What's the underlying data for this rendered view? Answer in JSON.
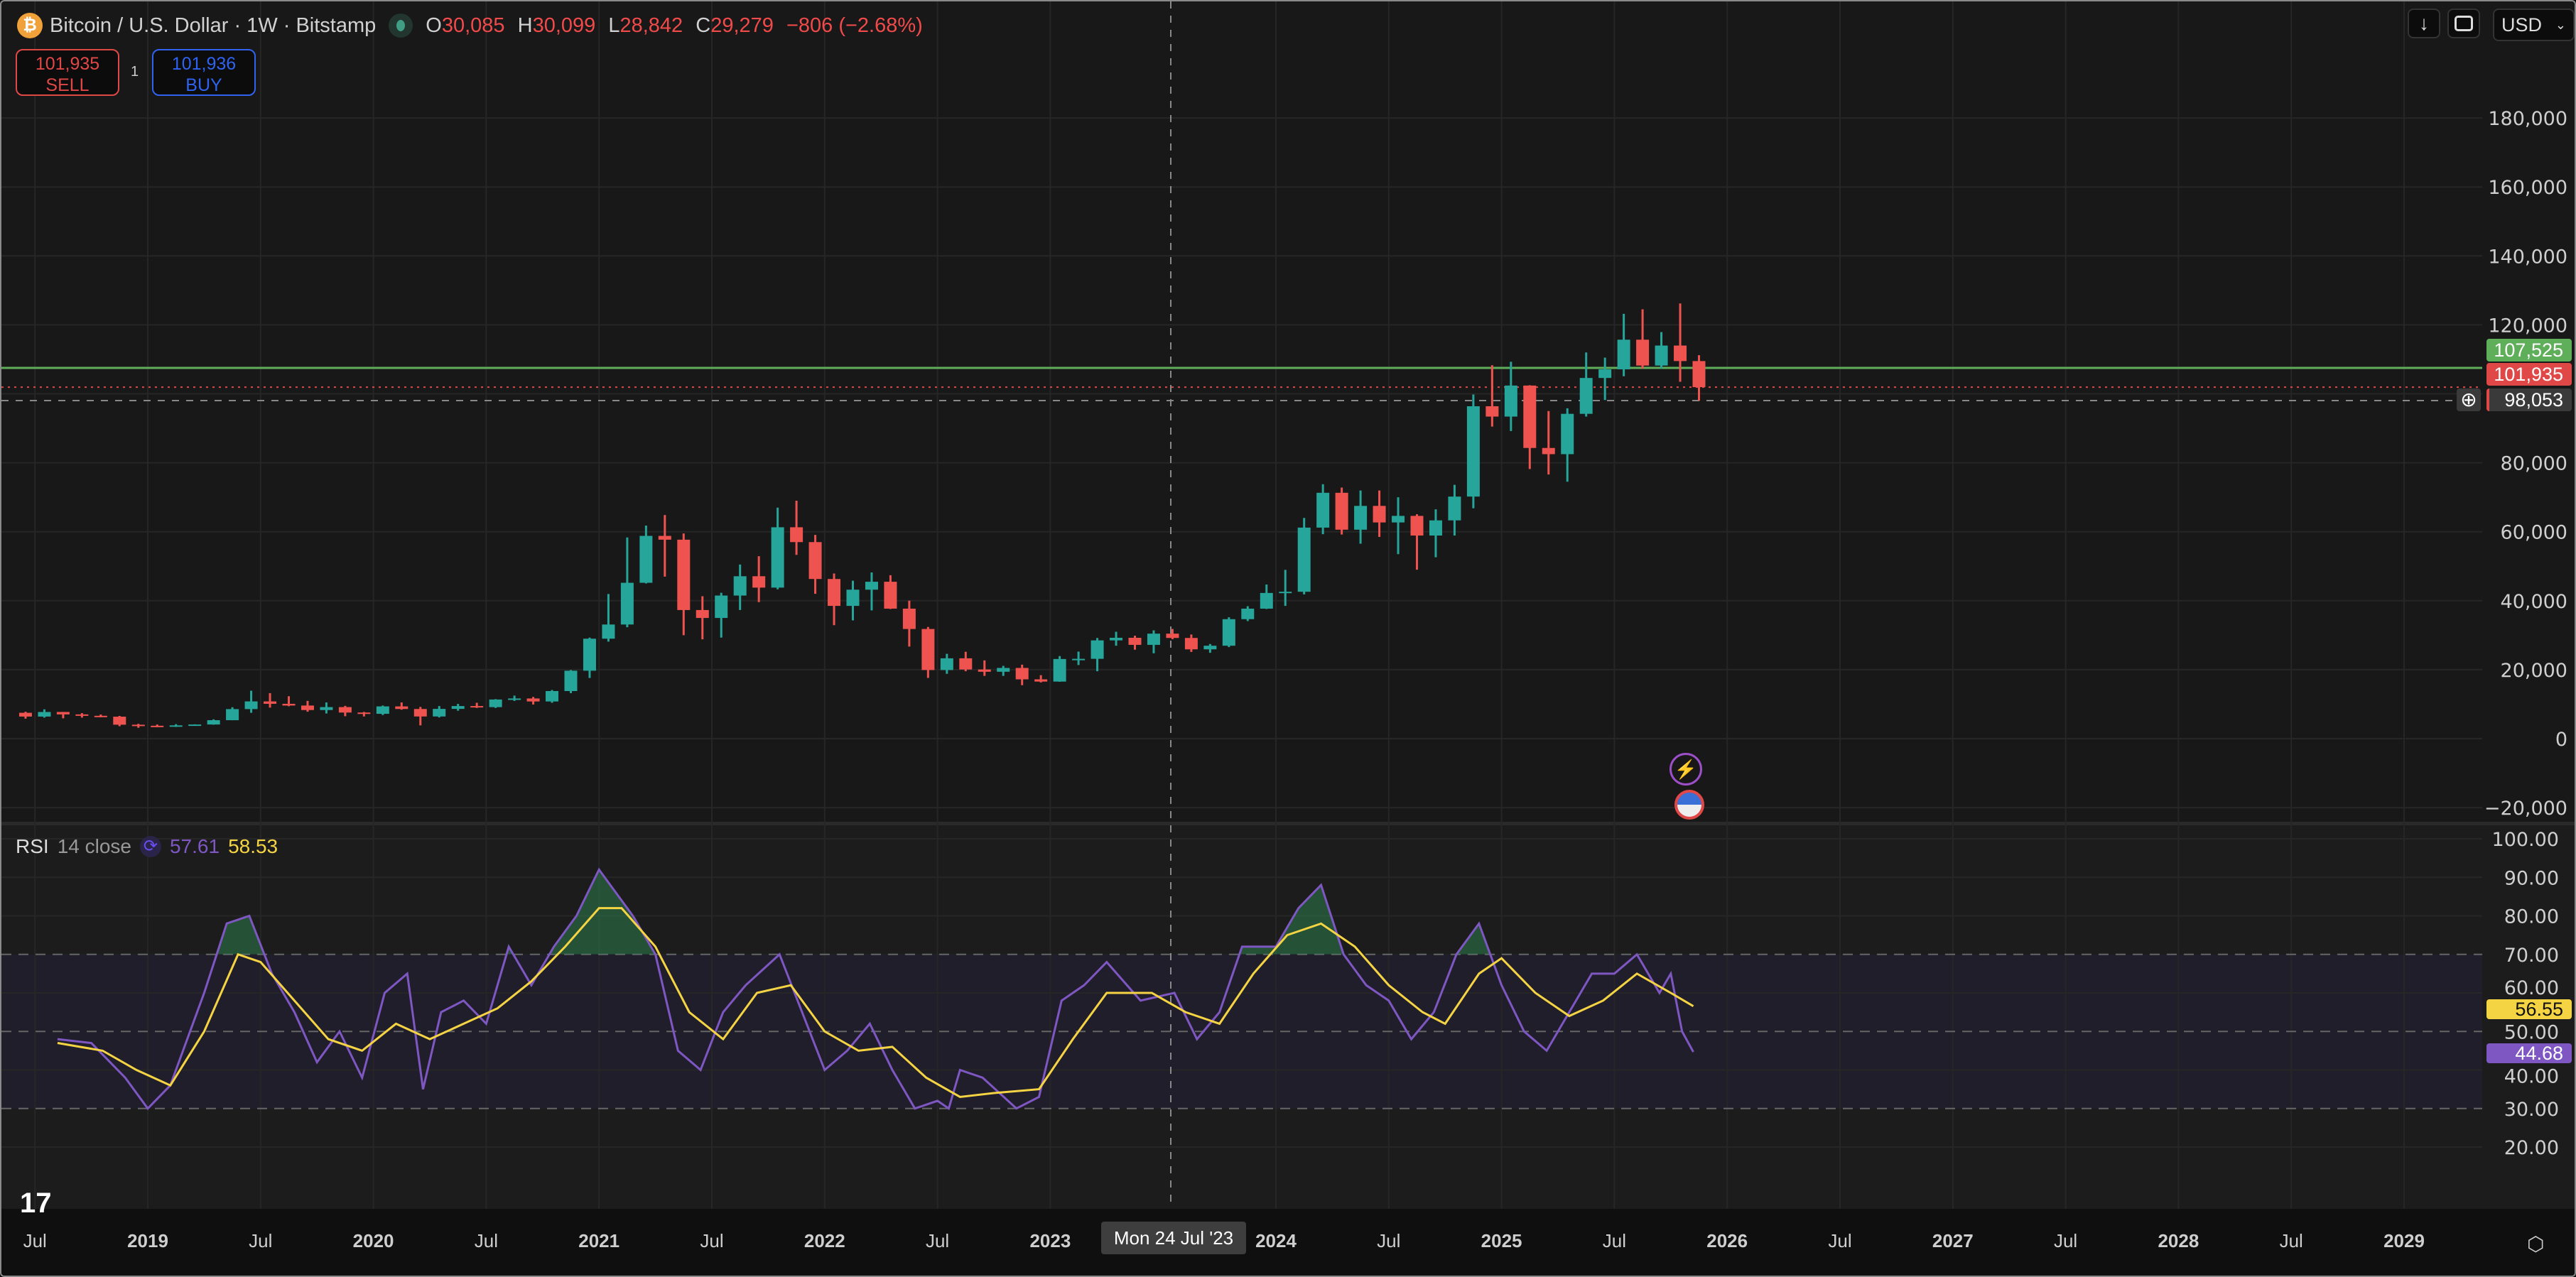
{
  "header": {
    "symbol": "Bitcoin / U.S. Dollar · 1W · Bitstamp",
    "icon": "bitcoin-icon",
    "o_label": "O",
    "o": "30,085",
    "h_label": "H",
    "h": "30,099",
    "l_label": "L",
    "l": "28,842",
    "c_label": "C",
    "c": "29,279",
    "change": "−806 (−2.68%)"
  },
  "trade": {
    "sell_price": "101,935",
    "sell_label": "SELL",
    "quantity": "1",
    "buy_price": "101,936",
    "buy_label": "BUY"
  },
  "toolbar": {
    "currency": "USD"
  },
  "price_tags": {
    "green": "107,525",
    "red": "101,935",
    "crosshair": "98,053"
  },
  "rsi": {
    "title": "RSI",
    "params": "14 close",
    "value": "57.61",
    "ma_value": "58.53",
    "tag_ma": "56.55",
    "tag_rsi": "44.68"
  },
  "crosshair_date": "Mon 24 Jul '23",
  "colors": {
    "up": "#26a69a",
    "down": "#ef5350",
    "rsi": "#7e57c2",
    "rsi_ma": "#f5d443",
    "green_line": "#5fae5a",
    "red_line": "#e04848"
  },
  "chart_data": [
    {
      "type": "candlestick",
      "title": "Bitcoin / U.S. Dollar · 1W · Bitstamp",
      "ylim": [
        -20000,
        190000
      ],
      "yticks": [
        "180,000",
        "160,000",
        "140,000",
        "120,000",
        "100,000",
        "80,000",
        "60,000",
        "40,000",
        "20,000",
        "0",
        "−20,000"
      ],
      "ytick_values": [
        180000,
        160000,
        140000,
        120000,
        100000,
        80000,
        60000,
        40000,
        20000,
        0,
        -20000
      ],
      "levels": [
        107525,
        101935,
        98053
      ],
      "candles": [
        [
          "2018-06",
          7500,
          7800,
          5800,
          6400
        ],
        [
          "2018-07",
          6400,
          8500,
          6100,
          7730
        ],
        [
          "2018-08",
          7730,
          7750,
          5900,
          7030
        ],
        [
          "2018-09",
          7030,
          7400,
          6100,
          6630
        ],
        [
          "2018-10",
          6630,
          7000,
          6200,
          6370
        ],
        [
          "2018-11",
          6370,
          6600,
          3600,
          4040
        ],
        [
          "2018-12",
          4040,
          4300,
          3150,
          3740
        ],
        [
          "2019-01",
          3740,
          4100,
          3350,
          3460
        ],
        [
          "2019-02",
          3460,
          4200,
          3400,
          3850
        ],
        [
          "2019-03",
          3850,
          4150,
          3700,
          4100
        ],
        [
          "2019-04",
          4100,
          5600,
          4050,
          5350
        ],
        [
          "2019-05",
          5350,
          9100,
          5330,
          8570
        ],
        [
          "2019-06",
          8570,
          13900,
          7500,
          10800
        ],
        [
          "2019-07",
          10800,
          13200,
          9000,
          10100
        ],
        [
          "2019-08",
          10100,
          12300,
          9400,
          9600
        ],
        [
          "2019-09",
          9600,
          10950,
          7800,
          8300
        ],
        [
          "2019-10",
          8300,
          10500,
          7300,
          9150
        ],
        [
          "2019-11",
          9150,
          9500,
          6500,
          7570
        ],
        [
          "2019-12",
          7570,
          7750,
          6430,
          7200
        ],
        [
          "2020-01",
          7200,
          9600,
          6850,
          9350
        ],
        [
          "2020-02",
          9350,
          10500,
          8400,
          8600
        ],
        [
          "2020-03",
          8600,
          9200,
          3850,
          6430
        ],
        [
          "2020-04",
          6430,
          9450,
          6150,
          8630
        ],
        [
          "2020-05",
          8630,
          10080,
          8100,
          9450
        ],
        [
          "2020-06",
          9450,
          10400,
          8900,
          9140
        ],
        [
          "2020-07",
          9140,
          11450,
          8900,
          11350
        ],
        [
          "2020-08",
          11350,
          12480,
          10950,
          11650
        ],
        [
          "2020-09",
          11650,
          12100,
          9900,
          10780
        ],
        [
          "2020-10",
          10780,
          14100,
          10400,
          13800
        ],
        [
          "2020-11",
          13800,
          19900,
          13200,
          19700
        ],
        [
          "2020-12",
          19700,
          29300,
          17600,
          28990
        ],
        [
          "2021-01",
          28990,
          41950,
          28150,
          33100
        ],
        [
          "2021-02",
          33100,
          58350,
          32300,
          45200
        ],
        [
          "2021-03",
          45200,
          61800,
          45000,
          58800
        ],
        [
          "2021-04",
          58800,
          64850,
          47000,
          57700
        ],
        [
          "2021-05",
          57700,
          59500,
          30000,
          37300
        ],
        [
          "2021-06",
          37300,
          41300,
          28800,
          35000
        ],
        [
          "2021-07",
          35000,
          42300,
          29300,
          41500
        ],
        [
          "2021-08",
          41500,
          50500,
          37300,
          47100
        ],
        [
          "2021-09",
          47100,
          52900,
          39600,
          43800
        ],
        [
          "2021-10",
          43800,
          67000,
          43300,
          61300
        ],
        [
          "2021-11",
          61300,
          69000,
          53300,
          57000
        ],
        [
          "2021-12",
          57000,
          59100,
          42000,
          46300
        ],
        [
          "2022-01",
          46300,
          47900,
          32900,
          38500
        ],
        [
          "2022-02",
          38500,
          45800,
          34300,
          43200
        ],
        [
          "2022-03",
          43200,
          48200,
          37200,
          45500
        ],
        [
          "2022-04",
          45500,
          47400,
          37600,
          37700
        ],
        [
          "2022-05",
          37700,
          40000,
          26700,
          31800
        ],
        [
          "2022-06",
          31800,
          32400,
          17600,
          19900
        ],
        [
          "2022-07",
          19900,
          24600,
          18800,
          23300
        ],
        [
          "2022-08",
          23300,
          25200,
          19550,
          20050
        ],
        [
          "2022-09",
          20050,
          22700,
          18200,
          19400
        ],
        [
          "2022-10",
          19400,
          21100,
          18200,
          20500
        ],
        [
          "2022-11",
          20500,
          21450,
          15500,
          17200
        ],
        [
          "2022-12",
          17200,
          18400,
          16300,
          16550
        ],
        [
          "2023-01",
          16550,
          23950,
          16500,
          23100
        ],
        [
          "2023-02",
          23100,
          25250,
          21350,
          23150
        ],
        [
          "2023-03",
          23150,
          29200,
          19550,
          28500
        ],
        [
          "2023-04",
          28500,
          31000,
          26950,
          29250
        ],
        [
          "2023-05",
          29250,
          29850,
          25800,
          27200
        ],
        [
          "2023-06",
          27200,
          31400,
          24750,
          30450
        ],
        [
          "2023-07",
          30450,
          31800,
          28850,
          29200
        ],
        [
          "2023-08",
          29200,
          30200,
          25150,
          25900
        ],
        [
          "2023-09",
          25900,
          27450,
          24900,
          26950
        ],
        [
          "2023-10",
          26950,
          35200,
          26550,
          34650
        ],
        [
          "2023-11",
          34650,
          38400,
          34100,
          37700
        ],
        [
          "2023-12",
          37700,
          44700,
          37600,
          42250
        ],
        [
          "2024-01",
          42250,
          48950,
          38500,
          42600
        ],
        [
          "2024-02",
          42600,
          64000,
          41850,
          61200
        ],
        [
          "2024-03",
          61200,
          73800,
          59300,
          71300
        ],
        [
          "2024-04",
          71300,
          72800,
          59200,
          60600
        ],
        [
          "2024-05",
          60600,
          71950,
          56550,
          67500
        ],
        [
          "2024-06",
          67500,
          71950,
          58500,
          62700
        ],
        [
          "2024-07",
          62700,
          70000,
          53500,
          64600
        ],
        [
          "2024-08",
          64600,
          65100,
          49000,
          58900
        ],
        [
          "2024-09",
          58900,
          66500,
          52600,
          63300
        ],
        [
          "2024-10",
          63300,
          73600,
          58900,
          70200
        ],
        [
          "2024-11",
          70200,
          99800,
          66800,
          96400
        ],
        [
          "2024-12",
          96400,
          108300,
          90500,
          93400
        ],
        [
          "2025-01",
          93400,
          109300,
          89200,
          102400
        ],
        [
          "2025-02",
          102400,
          102500,
          78200,
          84300
        ],
        [
          "2025-03",
          84300,
          95000,
          76600,
          82500
        ],
        [
          "2025-04",
          82500,
          95800,
          74500,
          94200
        ],
        [
          "2025-05",
          94200,
          112000,
          93400,
          104600
        ],
        [
          "2025-06",
          104600,
          110500,
          98200,
          107100
        ],
        [
          "2025-07",
          107100,
          123200,
          105100,
          115700
        ],
        [
          "2025-08",
          115700,
          124500,
          107300,
          108200
        ],
        [
          "2025-09",
          108200,
          117900,
          107300,
          114000
        ],
        [
          "2025-10",
          114000,
          126200,
          103500,
          109500
        ],
        [
          "2025-11",
          109500,
          111200,
          98000,
          101935
        ]
      ]
    },
    {
      "type": "line",
      "title": "RSI 14 close",
      "ylim": [
        20,
        100
      ],
      "yticks": [
        "100.00",
        "90.00",
        "80.00",
        "70.00",
        "60.00",
        "50.00",
        "40.00",
        "30.00",
        "20.00"
      ],
      "ytick_values": [
        100,
        90,
        80,
        70,
        60,
        50,
        40,
        30,
        20
      ],
      "bands": [
        30,
        50,
        70
      ],
      "series": [
        {
          "key": "rsi",
          "x": [
            2018.6,
            2018.75,
            2018.9,
            2019.0,
            2019.1,
            2019.25,
            2019.35,
            2019.45,
            2019.55,
            2019.65,
            2019.75,
            2019.85,
            2019.95,
            2020.05,
            2020.15,
            2020.22,
            2020.3,
            2020.4,
            2020.5,
            2020.6,
            2020.7,
            2020.8,
            2020.9,
            2021.0,
            2021.05,
            2021.15,
            2021.25,
            2021.35,
            2021.45,
            2021.55,
            2021.65,
            2021.8,
            2021.9,
            2022.0,
            2022.1,
            2022.2,
            2022.3,
            2022.4,
            2022.5,
            2022.55,
            2022.6,
            2022.7,
            2022.85,
            2022.95,
            2023.05,
            2023.15,
            2023.25,
            2023.4,
            2023.55,
            2023.65,
            2023.75,
            2023.85,
            2024.0,
            2024.1,
            2024.2,
            2024.3,
            2024.4,
            2024.5,
            2024.6,
            2024.7,
            2024.8,
            2024.9,
            2025.0,
            2025.1,
            2025.2,
            2025.3,
            2025.4,
            2025.5,
            2025.6,
            2025.7,
            2025.75,
            2025.8,
            2025.85
          ],
          "y": [
            48,
            47,
            38,
            30,
            36,
            60,
            78,
            80,
            65,
            55,
            42,
            50,
            38,
            60,
            65,
            35,
            55,
            58,
            52,
            72,
            62,
            72,
            80,
            92,
            88,
            80,
            70,
            45,
            40,
            55,
            62,
            70,
            55,
            40,
            45,
            52,
            40,
            30,
            32,
            30,
            40,
            38,
            30,
            33,
            58,
            62,
            68,
            58,
            60,
            48,
            55,
            72,
            72,
            82,
            88,
            70,
            62,
            58,
            48,
            55,
            70,
            78,
            62,
            50,
            45,
            55,
            65,
            65,
            70,
            60,
            65,
            50,
            44.68
          ]
        },
        {
          "key": "rsi_ma",
          "x": [
            2018.6,
            2018.8,
            2018.95,
            2019.1,
            2019.25,
            2019.4,
            2019.5,
            2019.65,
            2019.8,
            2019.95,
            2020.1,
            2020.25,
            2020.4,
            2020.55,
            2020.7,
            2020.85,
            2021.0,
            2021.1,
            2021.25,
            2021.4,
            2021.55,
            2021.7,
            2021.85,
            2022.0,
            2022.15,
            2022.3,
            2022.45,
            2022.6,
            2022.75,
            2022.95,
            2023.1,
            2023.25,
            2023.45,
            2023.6,
            2023.75,
            2023.9,
            2024.05,
            2024.2,
            2024.35,
            2024.5,
            2024.65,
            2024.75,
            2024.9,
            2025.0,
            2025.15,
            2025.3,
            2025.45,
            2025.6,
            2025.75,
            2025.85
          ],
          "y": [
            47,
            45,
            40,
            36,
            50,
            70,
            68,
            58,
            48,
            45,
            52,
            48,
            52,
            56,
            63,
            72,
            82,
            82,
            72,
            55,
            48,
            60,
            62,
            50,
            45,
            46,
            38,
            33,
            34,
            35,
            48,
            60,
            60,
            55,
            52,
            65,
            75,
            78,
            72,
            62,
            55,
            52,
            65,
            69,
            60,
            54,
            58,
            65,
            60,
            56.55
          ]
        }
      ]
    },
    {
      "type": "time-axis",
      "ticks": [
        [
          "Jul",
          2018.5,
          false
        ],
        [
          "2019",
          2019,
          true
        ],
        [
          "Jul",
          2019.5,
          false
        ],
        [
          "2020",
          2020,
          true
        ],
        [
          "Jul",
          2020.5,
          false
        ],
        [
          "2021",
          2021,
          true
        ],
        [
          "Jul",
          2021.5,
          false
        ],
        [
          "2022",
          2022,
          true
        ],
        [
          "Jul",
          2022.5,
          false
        ],
        [
          "2023",
          2023,
          true
        ],
        [
          "2024",
          2024,
          true
        ],
        [
          "Jul",
          2024.5,
          false
        ],
        [
          "2025",
          2025,
          true
        ],
        [
          "Jul",
          2025.5,
          false
        ],
        [
          "2026",
          2026,
          true
        ],
        [
          "Jul",
          2026.5,
          false
        ],
        [
          "2027",
          2027,
          true
        ],
        [
          "Jul",
          2027.5,
          false
        ],
        [
          "2028",
          2028,
          true
        ],
        [
          "Jul",
          2028.5,
          false
        ],
        [
          "2029",
          2029,
          true
        ]
      ]
    }
  ]
}
